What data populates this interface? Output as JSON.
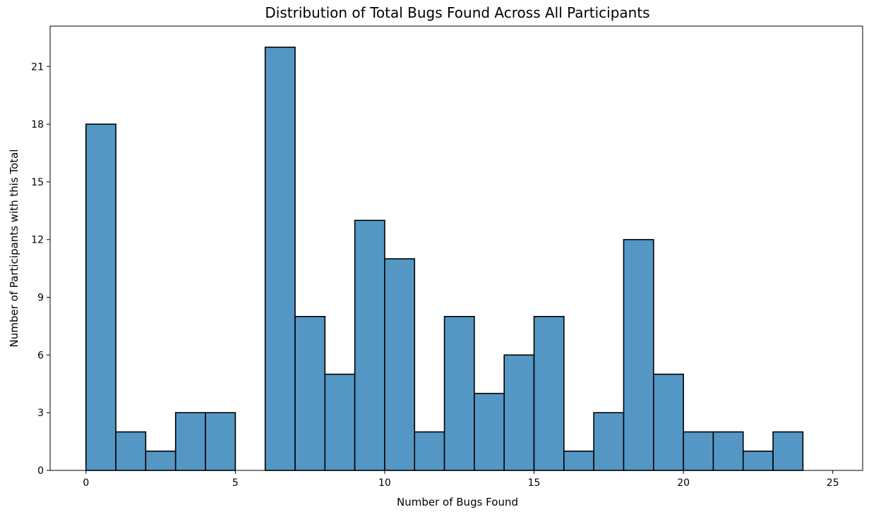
{
  "chart_data": {
    "type": "bar",
    "title": "Distribution of Total Bugs Found Across All Participants",
    "xlabel": "Number of Bugs Found",
    "ylabel": "Number of Participants with this Total",
    "xlim": [
      -1.2,
      26
    ],
    "ylim": [
      0,
      23.1
    ],
    "xticks": [
      0,
      5,
      10,
      15,
      20,
      25
    ],
    "yticks": [
      0,
      3,
      6,
      9,
      12,
      15,
      18,
      21
    ],
    "grid": false,
    "bar_color": "#5497c5",
    "edge_color": "#000000",
    "bins": [
      {
        "x0": 0,
        "x1": 1,
        "count": 18
      },
      {
        "x0": 1,
        "x1": 2,
        "count": 2
      },
      {
        "x0": 2,
        "x1": 3,
        "count": 1
      },
      {
        "x0": 3,
        "x1": 4,
        "count": 3
      },
      {
        "x0": 4,
        "x1": 5,
        "count": 3
      },
      {
        "x0": 5,
        "x1": 6,
        "count": 0
      },
      {
        "x0": 6,
        "x1": 7,
        "count": 22
      },
      {
        "x0": 7,
        "x1": 8,
        "count": 8
      },
      {
        "x0": 8,
        "x1": 9,
        "count": 5
      },
      {
        "x0": 9,
        "x1": 10,
        "count": 13
      },
      {
        "x0": 10,
        "x1": 11,
        "count": 11
      },
      {
        "x0": 11,
        "x1": 12,
        "count": 2
      },
      {
        "x0": 12,
        "x1": 13,
        "count": 8
      },
      {
        "x0": 13,
        "x1": 14,
        "count": 4
      },
      {
        "x0": 14,
        "x1": 15,
        "count": 6
      },
      {
        "x0": 15,
        "x1": 16,
        "count": 8
      },
      {
        "x0": 16,
        "x1": 17,
        "count": 1
      },
      {
        "x0": 17,
        "x1": 18,
        "count": 3
      },
      {
        "x0": 18,
        "x1": 19,
        "count": 12
      },
      {
        "x0": 19,
        "x1": 20,
        "count": 5
      },
      {
        "x0": 20,
        "x1": 21,
        "count": 2
      },
      {
        "x0": 21,
        "x1": 22,
        "count": 2
      },
      {
        "x0": 22,
        "x1": 23,
        "count": 1
      },
      {
        "x0": 23,
        "x1": 24,
        "count": 2
      }
    ]
  }
}
